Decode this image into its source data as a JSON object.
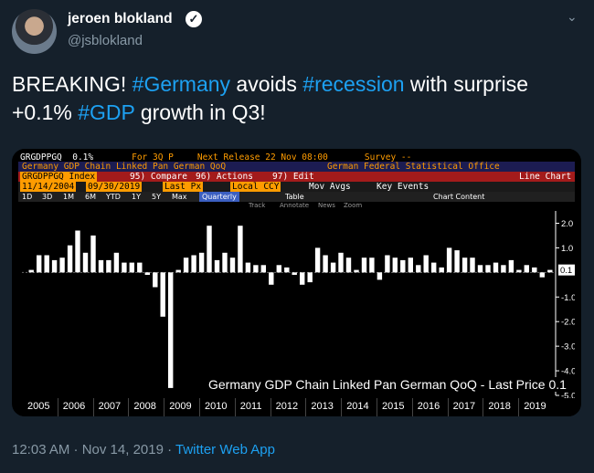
{
  "author": {
    "name": "jeroen blokland",
    "handle": "@jsblokland"
  },
  "tweet": {
    "part1": "BREAKING! ",
    "tag1": "#Germany",
    "part2": " avoids ",
    "tag2": "#recession",
    "part3": " with surprise +0.1% ",
    "tag3": "#GDP",
    "part4": " growth in Q3!"
  },
  "terminal": {
    "ticker": "GRGDPPGQ",
    "last": "0.1%",
    "period": "For 3Q P",
    "next_release": "Next Release 22 Nov 08:00",
    "survey": "Survey --",
    "series_title": "Germany GDP Chain Linked Pan German QoQ",
    "source": "German Federal Statistical Office",
    "index": "GRGDPPGQ Index",
    "compare": "95) Compare",
    "actions": "96) Actions",
    "edit": "97) Edit",
    "chart_type": "Line Chart",
    "start_date": "11/14/2004",
    "end_date": "09/30/2019",
    "field": "Last Px",
    "currency": "Local CCY",
    "mov_avgs": "Mov Avgs",
    "key_events": "Key Events",
    "ranges": [
      "1D",
      "3D",
      "1M",
      "6M",
      "YTD",
      "1Y",
      "5Y",
      "Max"
    ],
    "frequency": "Quarterly",
    "table_label": "Table",
    "chart_content": "Chart Content",
    "tools": [
      "Track",
      "Annotate",
      "News",
      "Zoom"
    ]
  },
  "chart_data": {
    "type": "bar",
    "legend": "Germany GDP Chain Linked Pan German QoQ - Last Price 0.1",
    "last_value_label": "0.1",
    "ylim": [
      -5.0,
      2.5
    ],
    "yticks": [
      2.0,
      1.0,
      -1.0,
      -2.0,
      -3.0,
      -4.0,
      -5.0
    ],
    "years": [
      "2005",
      "2006",
      "2007",
      "2008",
      "2009",
      "2010",
      "2011",
      "2012",
      "2013",
      "2014",
      "2015",
      "2016",
      "2017",
      "2018",
      "2019"
    ],
    "values": [
      0.1,
      0.7,
      0.7,
      0.5,
      0.6,
      1.1,
      1.7,
      0.8,
      1.5,
      0.5,
      0.5,
      0.8,
      0.4,
      0.4,
      0.4,
      -0.1,
      -0.6,
      -1.8,
      -4.7,
      0.1,
      0.6,
      0.7,
      0.8,
      1.9,
      0.5,
      0.8,
      0.6,
      1.9,
      0.4,
      0.3,
      0.3,
      -0.5,
      0.3,
      0.2,
      -0.1,
      -0.5,
      -0.4,
      1.0,
      0.7,
      0.4,
      0.8,
      0.6,
      0.1,
      0.6,
      0.6,
      -0.3,
      0.7,
      0.6,
      0.5,
      0.6,
      0.3,
      0.7,
      0.4,
      0.2,
      1.0,
      0.9,
      0.6,
      0.6,
      0.3,
      0.3,
      0.4,
      0.3,
      0.5,
      0.1,
      0.3,
      0.2,
      -0.2,
      0.1
    ]
  },
  "timestamp": "12:03 AM · Nov 14, 2019 · ",
  "client": "Twitter Web App",
  "colors": {
    "background": "#15202b",
    "link": "#1da1f2",
    "muted": "#8899a6",
    "terminal_orange": "#ff9c00",
    "terminal_red": "#a31b1b"
  }
}
